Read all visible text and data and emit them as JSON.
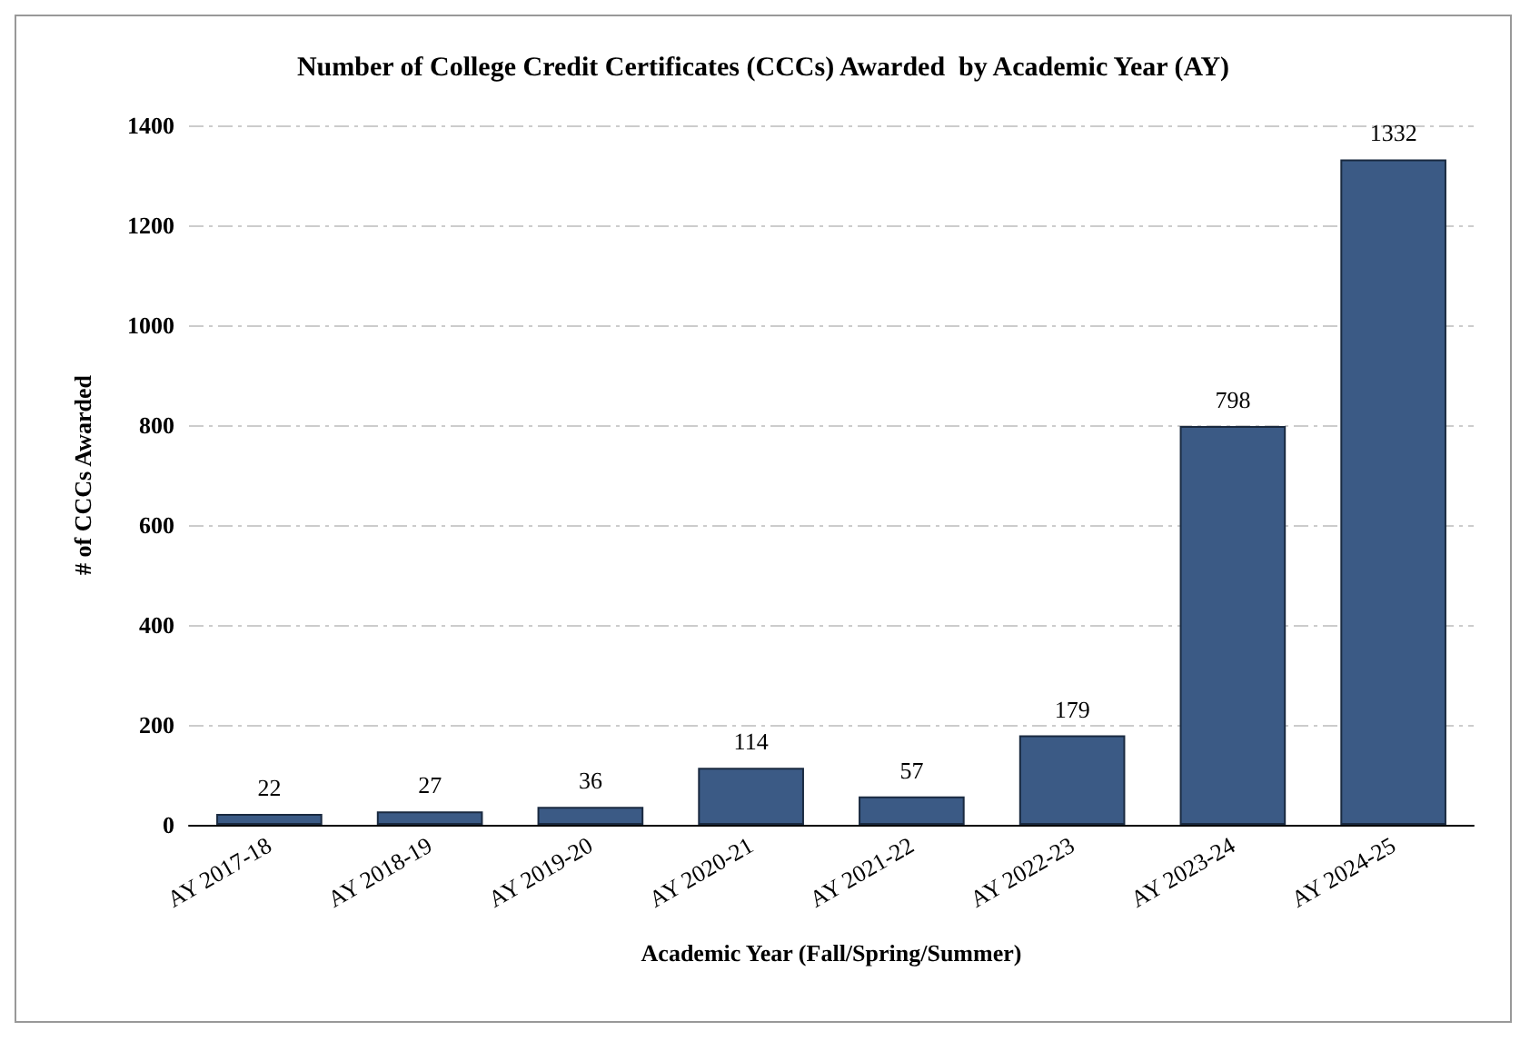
{
  "chart_data": {
    "type": "bar",
    "title": "Number of College Credit Certificates (CCCs) Awarded  by Academic Year (AY)",
    "xlabel": "Academic Year (Fall/Spring/Summer)",
    "ylabel": "# of CCCs Awarded",
    "categories": [
      "AY 2017-18",
      "AY 2018-19",
      "AY 2019-20",
      "AY 2020-21",
      "AY 2021-22",
      "AY 2022-23",
      "AY 2023-24",
      "AY 2024-25"
    ],
    "values": [
      22,
      27,
      36,
      114,
      57,
      179,
      798,
      1332
    ],
    "color": "#3b5a85",
    "data_labels": true,
    "ylim": [
      0,
      1400
    ],
    "yticks": [
      0,
      200,
      400,
      600,
      800,
      1000,
      1200,
      1400
    ],
    "grid": "y"
  }
}
